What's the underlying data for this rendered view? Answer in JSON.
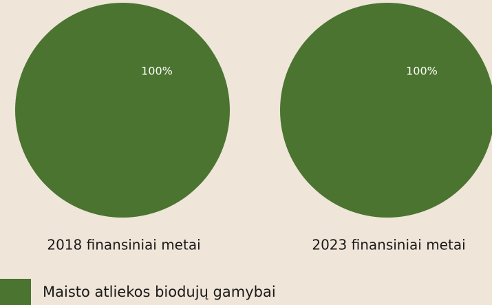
{
  "chart_data": [
    {
      "type": "pie",
      "title": "2018 finansiniai metai",
      "values": [
        100
      ],
      "value_labels": [
        "100%"
      ],
      "colors": [
        "#4a742f"
      ]
    },
    {
      "type": "pie",
      "title": "2023 finansiniai metai",
      "values": [
        100
      ],
      "value_labels": [
        "100%"
      ],
      "colors": [
        "#4a742f"
      ]
    }
  ],
  "legend": {
    "items": [
      {
        "name": "Maisto atliekos biodujų gamybai",
        "color": "#4a742f"
      }
    ]
  }
}
